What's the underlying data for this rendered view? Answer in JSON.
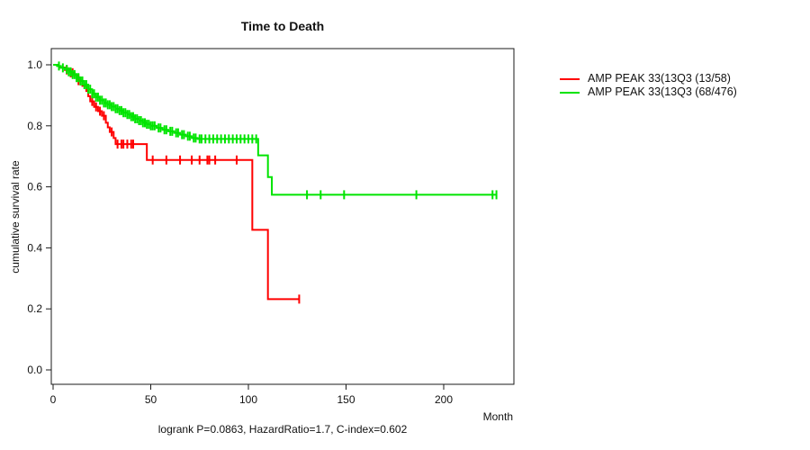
{
  "chart_data": {
    "type": "line",
    "subtype": "kaplan-meier-step",
    "title": "Time to Death",
    "xlabel": "Month",
    "ylabel": "cumulative survival rate",
    "footnote": "logrank P=0.0863, HazardRatio=1.7, C-index=0.602",
    "x_ticks": [
      0,
      50,
      100,
      150,
      200
    ],
    "y_ticks": [
      "0.0",
      "0.2",
      "0.4",
      "0.6",
      "0.8",
      "1.0"
    ],
    "xlim": [
      0,
      236
    ],
    "ylim": [
      0.0,
      1.0
    ],
    "grid": "off",
    "legend_position": "right-outside",
    "axis_color": "#1a1a1a",
    "series": [
      {
        "name": "AMP PEAK 33(13Q3 (13/58)",
        "color": "#ff0000",
        "end_month": 126,
        "end_censored": true,
        "steps": [
          [
            0,
            1.0
          ],
          [
            3,
            0.991
          ],
          [
            6,
            0.983
          ],
          [
            9,
            0.974
          ],
          [
            11,
            0.966
          ],
          [
            13,
            0.948
          ],
          [
            15,
            0.931
          ],
          [
            17,
            0.914
          ],
          [
            18,
            0.897
          ],
          [
            19,
            0.88
          ],
          [
            21,
            0.862
          ],
          [
            23,
            0.848
          ],
          [
            25,
            0.833
          ],
          [
            27,
            0.81
          ],
          [
            28,
            0.795
          ],
          [
            29,
            0.78
          ],
          [
            31,
            0.76
          ],
          [
            32,
            0.74
          ],
          [
            48,
            0.688
          ],
          [
            102,
            0.459
          ],
          [
            110,
            0.232
          ]
        ],
        "censor_months": [
          7,
          9,
          10,
          13,
          20,
          22,
          24,
          26,
          30,
          33,
          35,
          36,
          38,
          40,
          41,
          51,
          58,
          65,
          71,
          75,
          79,
          80,
          83,
          94,
          126
        ]
      },
      {
        "name": "AMP PEAK 33(13Q3 (68/476)",
        "color": "#00e400",
        "end_month": 227,
        "end_censored": true,
        "steps": [
          [
            0,
            1.0
          ],
          [
            2,
            0.996
          ],
          [
            4,
            0.99
          ],
          [
            6,
            0.985
          ],
          [
            8,
            0.977
          ],
          [
            10,
            0.968
          ],
          [
            12,
            0.958
          ],
          [
            14,
            0.947
          ],
          [
            16,
            0.935
          ],
          [
            18,
            0.92
          ],
          [
            20,
            0.905
          ],
          [
            22,
            0.894
          ],
          [
            24,
            0.884
          ],
          [
            26,
            0.875
          ],
          [
            28,
            0.869
          ],
          [
            30,
            0.863
          ],
          [
            32,
            0.856
          ],
          [
            34,
            0.85
          ],
          [
            36,
            0.843
          ],
          [
            38,
            0.837
          ],
          [
            40,
            0.83
          ],
          [
            42,
            0.823
          ],
          [
            44,
            0.817
          ],
          [
            46,
            0.81
          ],
          [
            48,
            0.805
          ],
          [
            50,
            0.8
          ],
          [
            53,
            0.793
          ],
          [
            56,
            0.787
          ],
          [
            59,
            0.782
          ],
          [
            62,
            0.777
          ],
          [
            65,
            0.771
          ],
          [
            68,
            0.766
          ],
          [
            71,
            0.76
          ],
          [
            74,
            0.757
          ],
          [
            105,
            0.703
          ],
          [
            110,
            0.632
          ],
          [
            112,
            0.574
          ]
        ],
        "censor_months": [
          3,
          5,
          7,
          8,
          9,
          10,
          11,
          12,
          13,
          14,
          15,
          16,
          17,
          18,
          19,
          20,
          21,
          22,
          23,
          24,
          25,
          26,
          27,
          28,
          29,
          30,
          31,
          32,
          33,
          34,
          35,
          36,
          37,
          38,
          39,
          40,
          41,
          42,
          43,
          44,
          45,
          46,
          47,
          48,
          49,
          50,
          51,
          52,
          54,
          55,
          57,
          58,
          60,
          61,
          63,
          64,
          66,
          67,
          69,
          70,
          72,
          73,
          75,
          76,
          78,
          80,
          82,
          84,
          86,
          88,
          90,
          92,
          94,
          96,
          98,
          100,
          102,
          104,
          130,
          137,
          149,
          186,
          225,
          227
        ]
      }
    ]
  }
}
